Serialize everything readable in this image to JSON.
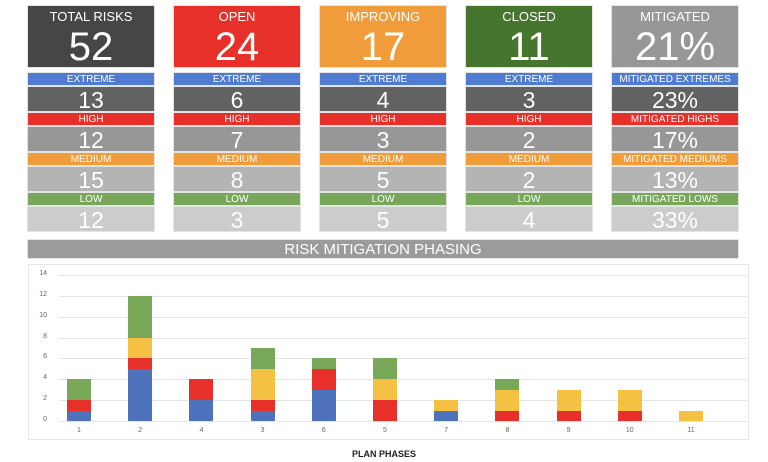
{
  "colors": {
    "total": "#464646",
    "open": "#e8302a",
    "improving": "#f19c3b",
    "closed": "#46752d",
    "mitigated": "#979797",
    "extreme_label": "#4f7bd1",
    "high_label": "#e8302a",
    "medium_label": "#f19c3b",
    "low_label": "#78a65a",
    "extreme_value": "#626262",
    "high_value": "#979797",
    "medium_value": "#b4b4b4",
    "low_value": "#cccccc"
  },
  "tiles": [
    {
      "title": "TOTAL RISKS",
      "value": "52",
      "extreme_label": "EXTREME",
      "extreme": "13",
      "high_label": "HIGH",
      "high": "12",
      "medium_label": "MEDIUM",
      "medium": "15",
      "low_label": "LOW",
      "low": "12"
    },
    {
      "title": "OPEN",
      "value": "24",
      "extreme_label": "EXTREME",
      "extreme": "6",
      "high_label": "HIGH",
      "high": "7",
      "medium_label": "MEDIUM",
      "medium": "8",
      "low_label": "LOW",
      "low": "3"
    },
    {
      "title": "IMPROVING",
      "value": "17",
      "extreme_label": "EXTREME",
      "extreme": "4",
      "high_label": "HIGH",
      "high": "3",
      "medium_label": "MEDIUM",
      "medium": "5",
      "low_label": "LOW",
      "low": "5"
    },
    {
      "title": "CLOSED",
      "value": "11",
      "extreme_label": "EXTREME",
      "extreme": "3",
      "high_label": "HIGH",
      "high": "2",
      "medium_label": "MEDIUM",
      "medium": "2",
      "low_label": "LOW",
      "low": "4"
    },
    {
      "title": "MITIGATED",
      "value": "21%",
      "extreme_label": "MITIGATED EXTREMES",
      "extreme": "23%",
      "high_label": "MITIGATED HIGHS",
      "high": "17%",
      "medium_label": "MITIGATED MEDIUMS",
      "medium": "13%",
      "low_label": "MITIGATED LOWS",
      "low": "33%"
    }
  ],
  "section": {
    "title": "RISK MITIGATION PHASING"
  },
  "chart_data": {
    "type": "bar",
    "stacked": true,
    "title": "RISK MITIGATION PHASING",
    "xlabel": "PLAN PHASES",
    "ylabel": "",
    "ylim": [
      0,
      14
    ],
    "yticks": [
      0,
      2,
      4,
      6,
      8,
      10,
      12,
      14
    ],
    "grid": true,
    "legend": null,
    "categories": [
      "1",
      "2",
      "4",
      "3",
      "6",
      "5",
      "7",
      "8",
      "9",
      "10",
      "11"
    ],
    "series": [
      {
        "name": "Extreme",
        "color": "#4f72bd",
        "values": [
          1,
          5,
          2,
          1,
          3,
          0,
          1,
          0,
          0,
          0,
          0
        ]
      },
      {
        "name": "High",
        "color": "#e8302a",
        "values": [
          1,
          1,
          2,
          1,
          2,
          2,
          0,
          1,
          1,
          1,
          0
        ]
      },
      {
        "name": "Medium",
        "color": "#f4c142",
        "values": [
          0,
          2,
          0,
          3,
          0,
          2,
          1,
          2,
          2,
          2,
          1
        ]
      },
      {
        "name": "Low",
        "color": "#78a858",
        "values": [
          2,
          4,
          0,
          2,
          1,
          2,
          0,
          1,
          0,
          0,
          0
        ]
      }
    ]
  }
}
